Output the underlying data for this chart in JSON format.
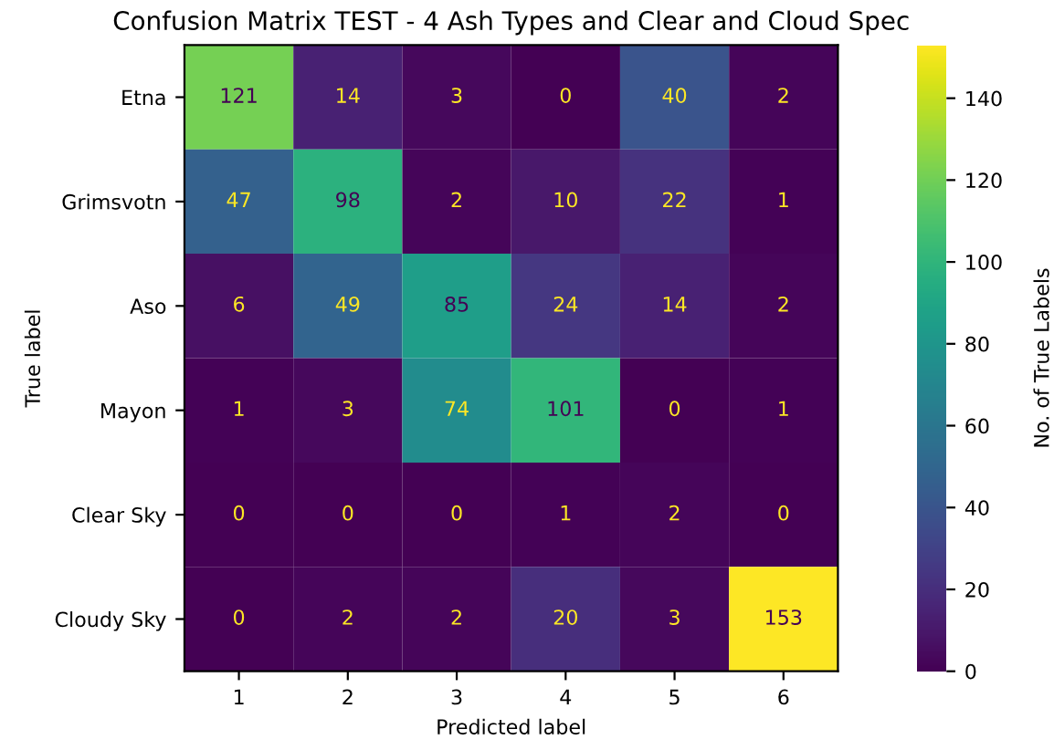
{
  "chart_data": {
    "type": "heatmap",
    "title": "Confusion Matrix TEST - 4 Ash Types and Clear and Cloud Spec",
    "xlabel": "Predicted label",
    "ylabel": "True label",
    "clabel": "No. of True Labels",
    "categories": [
      "1",
      "2",
      "3",
      "4",
      "5",
      "6"
    ],
    "y_categories": [
      "Etna",
      "Grimsvotn",
      "Aso",
      "Mayon",
      "Clear Sky",
      "Cloudy Sky"
    ],
    "cells": [
      [
        121,
        14,
        3,
        0,
        40,
        2
      ],
      [
        47,
        98,
        2,
        10,
        22,
        1
      ],
      [
        6,
        49,
        85,
        24,
        14,
        2
      ],
      [
        1,
        3,
        74,
        101,
        0,
        1
      ],
      [
        0,
        0,
        0,
        1,
        2,
        0
      ],
      [
        0,
        2,
        2,
        20,
        3,
        153
      ]
    ],
    "clim": [
      0,
      153
    ],
    "cticks": [
      0,
      20,
      40,
      60,
      80,
      100,
      120,
      140
    ],
    "data_labels": true,
    "grid": false
  }
}
